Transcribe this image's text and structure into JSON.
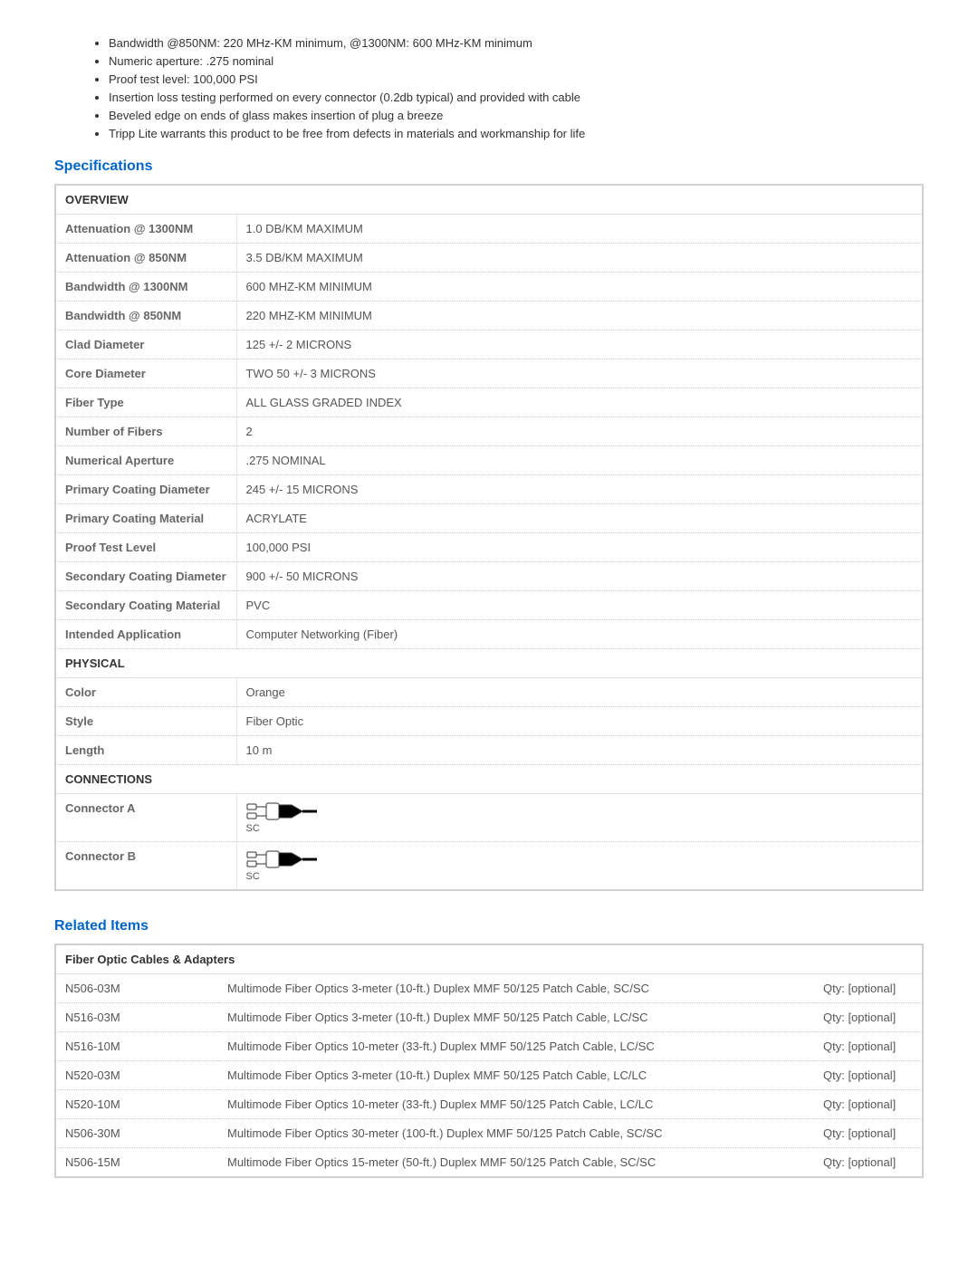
{
  "bullets": [
    "Bandwidth @850NM: 220 MHz-KM minimum, @1300NM: 600 MHz-KM minimum",
    "Numeric aperture: .275 nominal",
    "Proof test level: 100,000 PSI",
    "Insertion loss testing performed on every connector (0.2db typical) and provided with cable",
    "Beveled edge on ends of glass makes insertion of plug a breeze",
    "Tripp Lite warrants this product to be free from defects in materials and workmanship for life"
  ],
  "sections": {
    "specifications_title": "Specifications",
    "related_title": "Related Items"
  },
  "colors": {
    "heading": "#0066cc",
    "border": "#d0d0d0",
    "label_text": "#666666",
    "value_text": "#555555"
  },
  "spec_groups": [
    {
      "header": "OVERVIEW",
      "rows": [
        {
          "label": "Attenuation @ 1300NM",
          "value": "1.0 DB/KM MAXIMUM"
        },
        {
          "label": "Attenuation @ 850NM",
          "value": "3.5 DB/KM MAXIMUM"
        },
        {
          "label": "Bandwidth @ 1300NM",
          "value": "600 MHZ-KM MINIMUM"
        },
        {
          "label": "Bandwidth @ 850NM",
          "value": "220 MHZ-KM MINIMUM"
        },
        {
          "label": "Clad Diameter",
          "value": "125 +/- 2 MICRONS"
        },
        {
          "label": "Core Diameter",
          "value": "TWO 50 +/- 3 MICRONS"
        },
        {
          "label": "Fiber Type",
          "value": "ALL GLASS GRADED INDEX"
        },
        {
          "label": "Number of Fibers",
          "value": "2"
        },
        {
          "label": "Numerical Aperture",
          "value": ".275 NOMINAL"
        },
        {
          "label": "Primary Coating Diameter",
          "value": "245 +/- 15 MICRONS"
        },
        {
          "label": "Primary Coating Material",
          "value": "ACRYLATE"
        },
        {
          "label": "Proof Test Level",
          "value": "100,000 PSI"
        },
        {
          "label": "Secondary Coating Diameter",
          "value": "900 +/- 50 MICRONS"
        },
        {
          "label": "Secondary Coating Material",
          "value": "PVC"
        },
        {
          "label": "Intended Application",
          "value": "Computer Networking (Fiber)"
        }
      ]
    },
    {
      "header": "PHYSICAL",
      "rows": [
        {
          "label": "Color",
          "value": "Orange"
        },
        {
          "label": "Style",
          "value": "Fiber Optic"
        },
        {
          "label": "Length",
          "value": "10 m"
        }
      ]
    },
    {
      "header": "CONNECTIONS",
      "rows": [
        {
          "label": "Connector A",
          "value": "SC",
          "icon": "sc-connector"
        },
        {
          "label": "Connector B",
          "value": "SC",
          "icon": "sc-connector"
        }
      ]
    }
  ],
  "related": {
    "header": "Fiber Optic Cables & Adapters",
    "qty_label": "Qty: [optional]",
    "items": [
      {
        "sku": "N506-03M",
        "desc": "Multimode Fiber Optics 3-meter (10-ft.) Duplex MMF 50/125 Patch Cable, SC/SC"
      },
      {
        "sku": "N516-03M",
        "desc": "Multimode Fiber Optics 3-meter (10-ft.) Duplex MMF 50/125 Patch Cable, LC/SC"
      },
      {
        "sku": "N516-10M",
        "desc": "Multimode Fiber Optics 10-meter (33-ft.) Duplex MMF 50/125 Patch Cable, LC/SC"
      },
      {
        "sku": "N520-03M",
        "desc": "Multimode Fiber Optics 3-meter (10-ft.) Duplex MMF 50/125 Patch Cable, LC/LC"
      },
      {
        "sku": "N520-10M",
        "desc": "Multimode Fiber Optics 10-meter (33-ft.) Duplex MMF 50/125 Patch Cable, LC/LC"
      },
      {
        "sku": "N506-30M",
        "desc": "Multimode Fiber Optics 30-meter (100-ft.) Duplex MMF 50/125 Patch Cable, SC/SC"
      },
      {
        "sku": "N506-15M",
        "desc": "Multimode Fiber Optics 15-meter (50-ft.) Duplex MMF 50/125 Patch Cable, SC/SC"
      }
    ]
  }
}
